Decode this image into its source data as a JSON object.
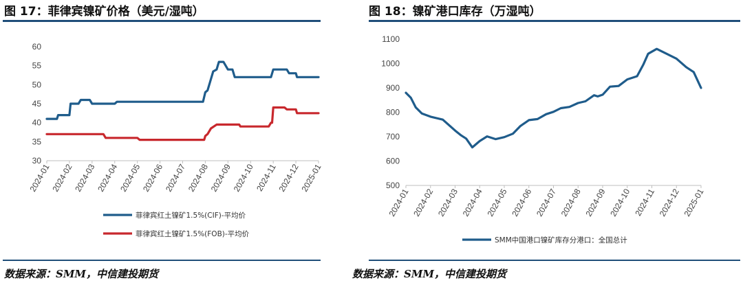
{
  "left": {
    "title": "图 17：菲律宾镍矿价格（美元/湿吨）",
    "source": "数据来源：SMM，中信建投期货"
  },
  "right": {
    "title": "图 18：镍矿港口库存（万湿吨）",
    "source": "数据来源：SMM，中信建投期货"
  },
  "colors": {
    "rule": "#1f4e79",
    "cif": "#1f5c8b",
    "fob": "#c8282d",
    "inventory": "#1f5c8b"
  },
  "chart_data": [
    {
      "type": "line",
      "x_ticks": [
        "2024-01",
        "2024-02",
        "2024-03",
        "2024-04",
        "2024-05",
        "2024-06",
        "2024-07",
        "2024-08",
        "2024-09",
        "2024-10",
        "2024-11",
        "2024-12",
        "2025-01"
      ],
      "ylim": [
        30,
        60
      ],
      "y_ticks": [
        30,
        35,
        40,
        45,
        50,
        55,
        60
      ],
      "grid": false,
      "legend_position": "bottom",
      "series": [
        {
          "name": "菲律宾红土镍矿1.5%(CIF)-平均价",
          "color": "#1f5c8b",
          "x": [
            0,
            0.45,
            0.5,
            1.0,
            1.05,
            1.4,
            1.5,
            1.9,
            2.0,
            2.2,
            2.3,
            3.0,
            3.1,
            4.0,
            5.0,
            6.0,
            6.9,
            7.0,
            7.1,
            7.2,
            7.35,
            7.5,
            7.55,
            7.6,
            7.75,
            7.8,
            8.0,
            8.2,
            8.3,
            8.45,
            8.55,
            9.0,
            9.5,
            9.9,
            10.0,
            10.5,
            10.6,
            10.7,
            11.0,
            11.05,
            11.5,
            12.0
          ],
          "values": [
            41,
            41,
            42,
            42,
            45,
            45,
            46,
            46,
            45,
            45,
            45,
            45,
            45.5,
            45.5,
            45.5,
            45.5,
            45.5,
            48,
            48.5,
            50.5,
            53.5,
            54,
            55,
            56,
            56,
            56,
            54,
            54,
            52,
            52,
            52,
            52,
            52,
            52,
            54,
            54,
            54,
            53,
            53,
            52,
            52,
            52
          ]
        },
        {
          "name": "菲律宾红土镍矿1.5%(FOB)-平均价",
          "color": "#c8282d",
          "x": [
            0,
            1.0,
            2.0,
            2.5,
            2.6,
            3.5,
            4.0,
            4.1,
            5.0,
            6.0,
            6.95,
            7.0,
            7.1,
            7.25,
            7.5,
            8.0,
            8.5,
            8.55,
            9.0,
            9.8,
            9.9,
            9.95,
            10.0,
            10.5,
            10.6,
            11.0,
            11.05,
            12.0
          ],
          "values": [
            37,
            37,
            37,
            37,
            36,
            36,
            36,
            35.5,
            35.5,
            35.5,
            35.5,
            36.5,
            37,
            38.5,
            39.5,
            39.5,
            39.5,
            39,
            39,
            39,
            40,
            40,
            44,
            44,
            43.5,
            43.5,
            42.5,
            42.5
          ]
        }
      ]
    },
    {
      "type": "line",
      "x_ticks": [
        "2024-01",
        "2024-02",
        "2024-03",
        "2024-04",
        "2024-05",
        "2024-06",
        "2024-07",
        "2024-08",
        "2024-09",
        "2024-10",
        "2024-11",
        "2024-12",
        "2025-01"
      ],
      "ylim": [
        500,
        1100
      ],
      "y_ticks": [
        500,
        600,
        700,
        800,
        900,
        1000,
        1100
      ],
      "grid": false,
      "legend_position": "bottom",
      "series": [
        {
          "name": "SMM中国港口镍矿库存分港口：全国总计",
          "color": "#1f5c8b",
          "x": [
            0,
            0.2,
            0.4,
            0.65,
            1.0,
            1.5,
            2.0,
            2.25,
            2.45,
            2.7,
            3.0,
            3.3,
            3.65,
            4.0,
            4.35,
            4.65,
            5.0,
            5.35,
            5.7,
            6.0,
            6.3,
            6.65,
            7.0,
            7.3,
            7.65,
            7.8,
            8.0,
            8.3,
            8.65,
            9.0,
            9.4,
            9.65,
            9.85,
            10.2,
            10.6,
            11.0,
            11.4,
            11.7,
            12.0
          ],
          "values": [
            880,
            860,
            820,
            795,
            782,
            770,
            725,
            705,
            692,
            656,
            682,
            701,
            690,
            698,
            712,
            743,
            768,
            772,
            792,
            802,
            817,
            822,
            838,
            845,
            870,
            865,
            872,
            905,
            908,
            935,
            948,
            995,
            1040,
            1060,
            1040,
            1020,
            985,
            965,
            900
          ]
        }
      ]
    }
  ]
}
